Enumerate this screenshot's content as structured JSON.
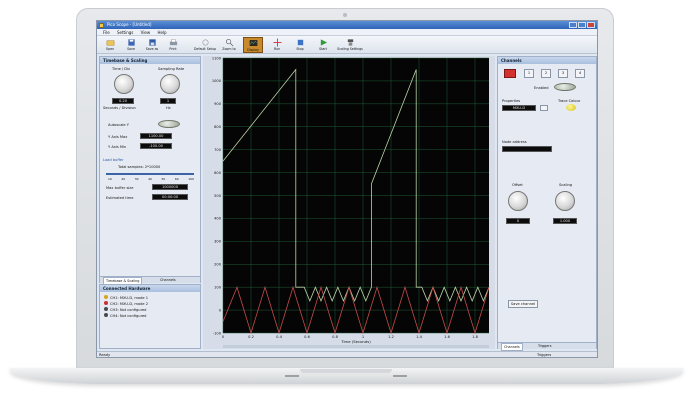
{
  "window": {
    "title": "Pico Scope - [Untitled]"
  },
  "menu": [
    "File",
    "Settings",
    "View",
    "Help"
  ],
  "toolbar": [
    {
      "label": "Open",
      "icon": "folder-open-icon"
    },
    {
      "label": "Save",
      "icon": "save-icon"
    },
    {
      "label": "Save as",
      "icon": "save-as-icon"
    },
    {
      "label": "Print",
      "icon": "print-icon"
    },
    {
      "label": "Default Setup",
      "icon": "default-setup-icon"
    },
    {
      "label": "Zoom to",
      "icon": "zoom-icon"
    },
    {
      "label": "Display",
      "icon": "display-icon"
    },
    {
      "label": "Run",
      "icon": "crosshair-icon"
    },
    {
      "label": "Stop",
      "icon": "stop-icon"
    },
    {
      "label": "Start",
      "icon": "play-icon"
    },
    {
      "label": "Scaling Settings",
      "icon": "scaling-icon"
    }
  ],
  "timebase_panel": {
    "title": "Timebase & Scaling",
    "time_div_label": "Time / Div",
    "sampling_rate_label": "Sampling Rate",
    "time_value": "0.20",
    "rate_value": "1",
    "seconds_label": "Seconds / Division",
    "hz_label": "Hz",
    "autoscale_label": "Autoscale Y",
    "y_max_label": "Y Axis Max",
    "y_max_value": "1100.00",
    "y_min_label": "Y Axis Min",
    "y_min_value": "-100.00",
    "load_buffer_label": "Load buffer",
    "total_samples_label": "Total samples: 2*10000",
    "slider_ticks": [
      "10",
      "20",
      "30",
      "40",
      "50",
      "60",
      "100"
    ],
    "max_buffer_label": "Max buffer size",
    "max_buffer_value": "1000000",
    "estimated_time_label": "Estimated time",
    "estimated_time_value": "00:00:00",
    "tabs": [
      "Timebase & Scaling",
      "Channels"
    ]
  },
  "connected_panel": {
    "title": "Connected Hardware",
    "items": [
      {
        "label": "CH1: MXU-D, mode 1",
        "color": "#d9a31f"
      },
      {
        "label": "CH2: MXU-D, mode 2",
        "color": "#c9312c"
      },
      {
        "label": "CH3: Not configured",
        "color": "#4a4a4a"
      },
      {
        "label": "CH4: Not configured",
        "color": "#4a4a4a"
      }
    ]
  },
  "chart_data": {
    "type": "line",
    "xlabel": "Time (Seconds)",
    "ylim": [
      -100,
      1100
    ],
    "xlim": [
      0,
      1.9
    ],
    "y_ticks": [
      1100,
      1000,
      900,
      800,
      700,
      600,
      500,
      400,
      300,
      200,
      100,
      0,
      -100
    ],
    "x_ticks": [
      "0",
      "0.2",
      "0.4",
      "0.6",
      "0.8",
      "1",
      "1.2",
      "1.4",
      "1.6",
      "1.8"
    ],
    "grid": true,
    "series": [
      {
        "color": "#b9d3a6",
        "x": [
          0,
          0.52,
          0.52,
          0.58,
          0.62,
          0.66,
          0.7,
          0.74,
          0.78,
          0.82,
          0.86,
          0.9,
          0.94,
          0.98,
          1.02,
          1.06,
          1.06,
          1.38,
          1.38,
          1.42,
          1.46,
          1.5,
          1.54,
          1.58,
          1.62,
          1.66,
          1.7,
          1.74,
          1.78,
          1.82,
          1.86,
          1.9
        ],
        "y": [
          650,
          1050,
          100,
          100,
          40,
          100,
          40,
          100,
          40,
          100,
          40,
          100,
          40,
          100,
          40,
          100,
          550,
          1050,
          100,
          100,
          40,
          100,
          40,
          100,
          40,
          100,
          40,
          100,
          40,
          100,
          40,
          100
        ]
      },
      {
        "color": "#c64a4a",
        "x": [
          0,
          0.1,
          0.2,
          0.3,
          0.4,
          0.5,
          0.6,
          0.7,
          0.8,
          0.9,
          1.0,
          1.1,
          1.2,
          1.3,
          1.4,
          1.5,
          1.6,
          1.7,
          1.8,
          1.9
        ],
        "y": [
          -50,
          100,
          -100,
          100,
          -100,
          100,
          -100,
          100,
          -100,
          100,
          -100,
          100,
          -100,
          100,
          -100,
          100,
          -100,
          100,
          -100,
          100
        ]
      }
    ]
  },
  "channels_panel": {
    "title": "Channels",
    "channel_tabs": [
      "1",
      "2",
      "3",
      "4"
    ],
    "active_color": "#d4302e",
    "enabled_label": "Enabled",
    "properties_label": "Properties",
    "trace_colour_label": "Trace Colour",
    "property_value": "MXU-D",
    "node_address_label": "Node address",
    "offset_label": "Offset",
    "scaling_label": "Scaling",
    "offset_value": "0",
    "scaling_value": "1.000",
    "save_channel_label": "Save channel",
    "tabs": [
      "Channels",
      "Triggers"
    ]
  },
  "status": {
    "left": "Ready",
    "right": "Triggers"
  }
}
